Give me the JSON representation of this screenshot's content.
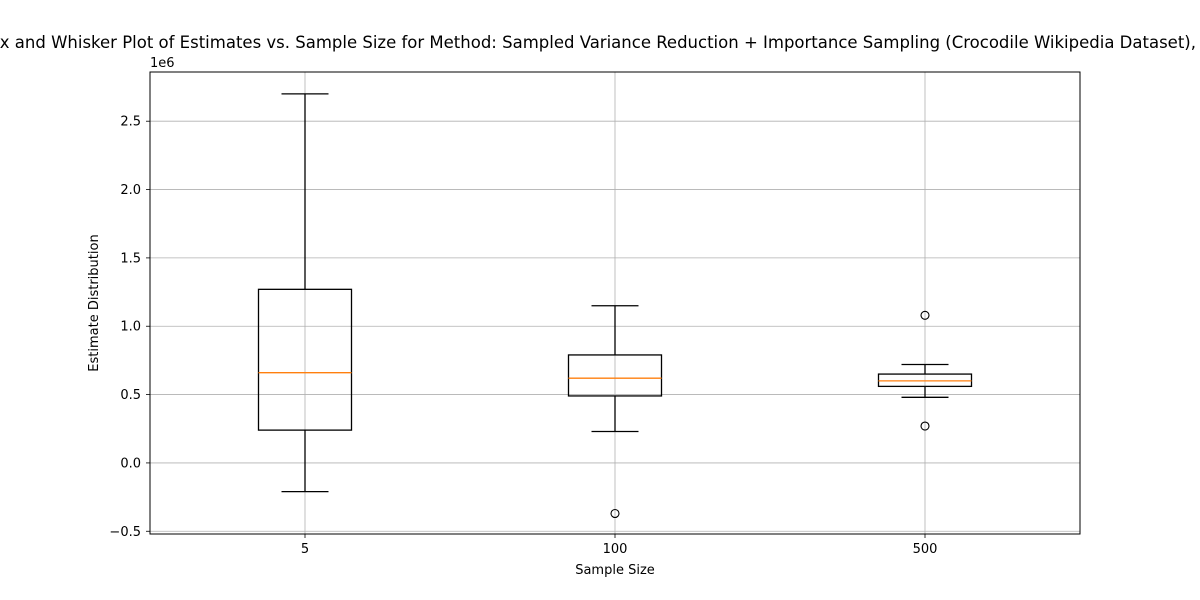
{
  "chart_data": {
    "type": "boxplot",
    "title": "Box and Whisker Plot of Estimates vs. Sample Size for Method: Sampled Variance Reduction + Importance Sampling (Crocodile Wikipedia Dataset), Power",
    "xlabel": "Sample Size",
    "ylabel": "Estimate Distribution",
    "y_scale_label": "1e6",
    "categories": [
      "5",
      "100",
      "500"
    ],
    "y_ticks": [
      -0.5,
      0.0,
      0.5,
      1.0,
      1.5,
      2.0,
      2.5
    ],
    "y_tick_labels": [
      "−0.5",
      "0.0",
      "0.5",
      "1.0",
      "1.5",
      "2.0",
      "2.5"
    ],
    "ylim": [
      -0.52,
      2.86
    ],
    "grid": true,
    "box_color": "#000000",
    "median_color": "#ff7f0e",
    "boxes": [
      {
        "category": "5",
        "whisker_low": -0.21,
        "q1": 0.24,
        "median": 0.66,
        "q3": 1.27,
        "whisker_high": 2.7,
        "fliers": []
      },
      {
        "category": "100",
        "whisker_low": 0.23,
        "q1": 0.49,
        "median": 0.62,
        "q3": 0.79,
        "whisker_high": 1.15,
        "fliers": [
          -0.37
        ]
      },
      {
        "category": "500",
        "whisker_low": 0.48,
        "q1": 0.56,
        "median": 0.6,
        "q3": 0.65,
        "whisker_high": 0.72,
        "fliers": [
          1.08,
          0.27
        ]
      }
    ]
  }
}
